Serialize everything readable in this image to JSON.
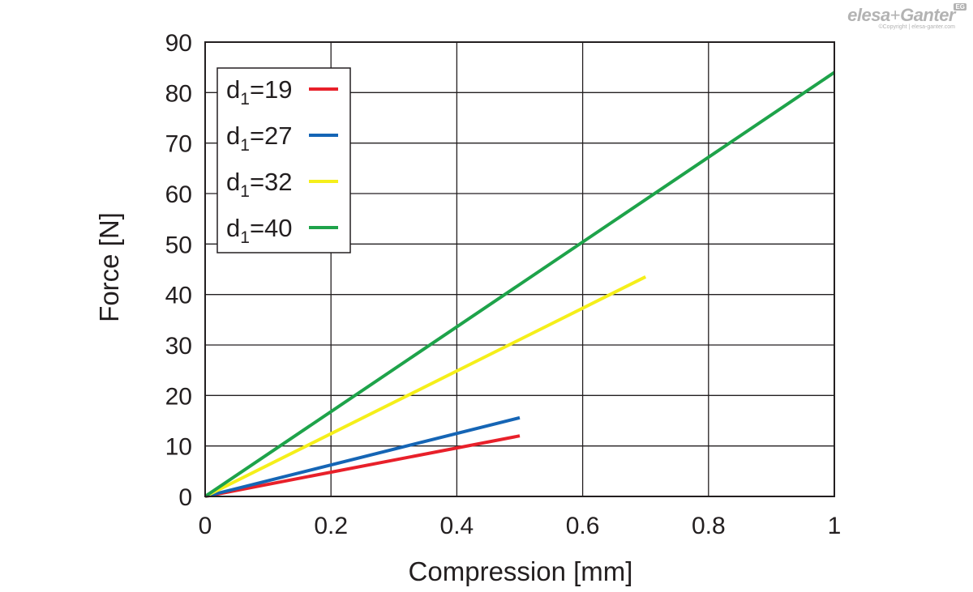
{
  "logo": {
    "brand_left": "elesa",
    "brand_plus": "+",
    "brand_right": "Ganter",
    "badge": "EG",
    "copyright": "©Copyright | elesa-ganter.com"
  },
  "chart_data": {
    "type": "line",
    "title": "",
    "xlabel": "Compression [mm]",
    "ylabel": "Force [N]",
    "xlim": [
      0,
      1
    ],
    "ylim": [
      0,
      90
    ],
    "xticks": [
      0,
      0.2,
      0.4,
      0.6,
      0.8,
      1
    ],
    "xtick_labels": [
      "0",
      "0.2",
      "0.4",
      "0.6",
      "0.8",
      "1"
    ],
    "yticks": [
      0,
      10,
      20,
      30,
      40,
      50,
      60,
      70,
      80,
      90
    ],
    "ytick_labels": [
      "0",
      "10",
      "20",
      "30",
      "40",
      "50",
      "60",
      "70",
      "80",
      "90"
    ],
    "grid": true,
    "legend_position": "top-left",
    "series": [
      {
        "name_main": "d",
        "name_sub": "1",
        "name_tail": "=19",
        "color": "#e8202a",
        "x": [
          0,
          0.5
        ],
        "y": [
          0,
          12
        ]
      },
      {
        "name_main": "d",
        "name_sub": "1",
        "name_tail": "=27",
        "color": "#1565b5",
        "x": [
          0,
          0.5
        ],
        "y": [
          0,
          15.6
        ]
      },
      {
        "name_main": "d",
        "name_sub": "1",
        "name_tail": "=32",
        "color": "#f5ef1a",
        "x": [
          0,
          0.7
        ],
        "y": [
          0,
          43.5
        ]
      },
      {
        "name_main": "d",
        "name_sub": "1",
        "name_tail": "=40",
        "color": "#1ea34a",
        "x": [
          0,
          1
        ],
        "y": [
          0,
          84
        ]
      }
    ]
  }
}
